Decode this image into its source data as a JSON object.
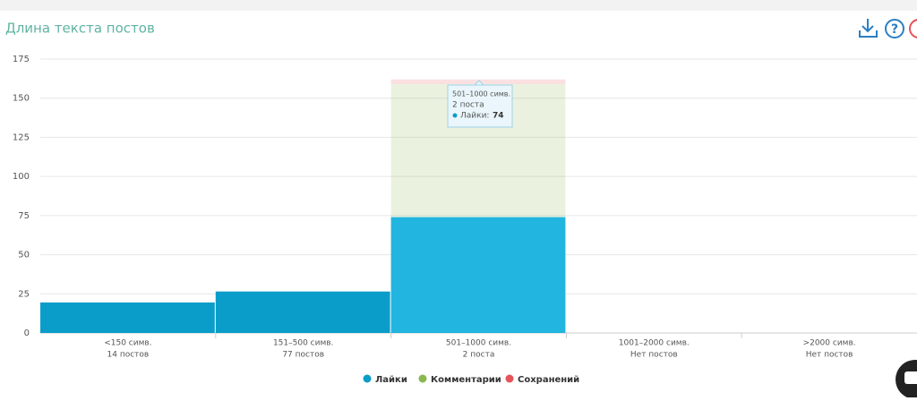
{
  "chart_data": {
    "type": "bar",
    "stacked": true,
    "title": "Длина текста постов",
    "categories": [
      "<150 симв.",
      "151–500 симв.",
      "501–1000 симв.",
      "1001–2000 симв.",
      ">2000 симв."
    ],
    "category_notes": [
      "14 постов",
      "77 постов",
      "2 поста",
      "Нет постов",
      "Нет постов"
    ],
    "series": [
      {
        "name": "Лайки",
        "color": "#0b9dc9",
        "values": [
          19.5,
          26.5,
          74,
          null,
          null
        ]
      },
      {
        "name": "Комментарии",
        "color": "#8ab850",
        "values": [
          0,
          0,
          85,
          null,
          null
        ]
      },
      {
        "name": "Сохранений",
        "color": "#e5535b",
        "values": [
          0,
          0,
          3,
          null,
          null
        ]
      }
    ],
    "ylim": [
      0,
      175
    ],
    "yticks": [
      0,
      25,
      50,
      75,
      100,
      125,
      150,
      175
    ],
    "grid": true,
    "legend": "bottom",
    "tooltip": {
      "title": "501–1000 симв.",
      "subtitle": "2 поста",
      "series_label": "Лайки:",
      "value": 74
    }
  }
}
